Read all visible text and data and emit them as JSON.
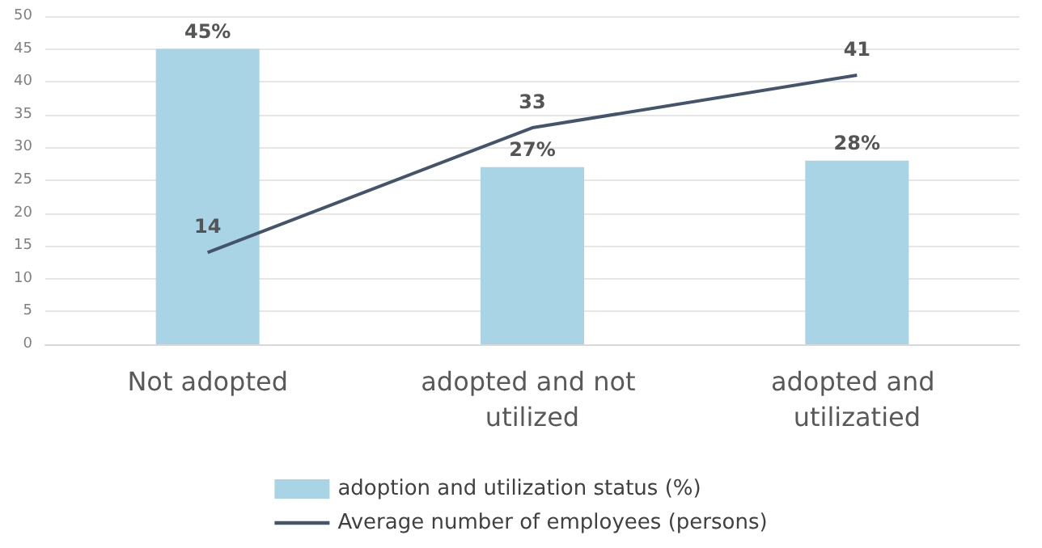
{
  "chart_data": {
    "type": "bar",
    "categories": [
      "Not adopted",
      "adopted and not utilized",
      "adopted and utilizatied"
    ],
    "series": [
      {
        "name": "adoption and utilization status (%)",
        "type": "bar",
        "color": "#a9d4e6",
        "values": [
          45,
          27,
          28
        ],
        "value_labels": [
          "45%",
          "27%",
          "28%"
        ]
      },
      {
        "name": "Average number of employees (persons)",
        "type": "line",
        "color": "#44546a",
        "values": [
          14,
          33,
          41
        ],
        "value_labels": [
          "14",
          "33",
          "41"
        ]
      }
    ],
    "ylim": [
      0,
      50
    ],
    "yticks": [
      0,
      5,
      10,
      15,
      20,
      25,
      30,
      35,
      40,
      45,
      50
    ],
    "grid": "y",
    "legend": "bottom",
    "marker": "none"
  }
}
